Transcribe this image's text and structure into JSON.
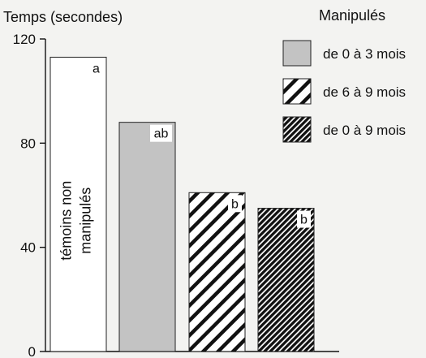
{
  "chart_data": {
    "type": "bar",
    "ylabel": "Temps (secondes)",
    "ylim": [
      0,
      120
    ],
    "yticks": [
      0,
      40,
      80,
      120
    ],
    "legend_title": "Manipulés",
    "legend_position": "top-right",
    "bars": [
      {
        "group_label": "témoins non manipulés",
        "label_line1": "témoins non",
        "label_line2": "manipulés",
        "value": 113,
        "letter": "a",
        "fill": "white"
      },
      {
        "series": "de 0 à 3 mois",
        "value": 88,
        "letter": "ab",
        "fill": "gray"
      },
      {
        "series": "de 6 à 9 mois",
        "value": 61,
        "letter": "b",
        "fill": "wide-hatch"
      },
      {
        "series": "de 0 à 9 mois",
        "value": 55,
        "letter": "b",
        "fill": "dense-hatch"
      }
    ],
    "legend": [
      {
        "label": "de 0 à 3 mois",
        "fill": "gray"
      },
      {
        "label": "de 6 à 9 mois",
        "fill": "wide-hatch"
      },
      {
        "label": "de 0 à 9 mois",
        "fill": "dense-hatch"
      }
    ]
  },
  "colors": {
    "background": "#f3f3f1",
    "gray": "#c3c3c3",
    "ink": "#111111"
  }
}
